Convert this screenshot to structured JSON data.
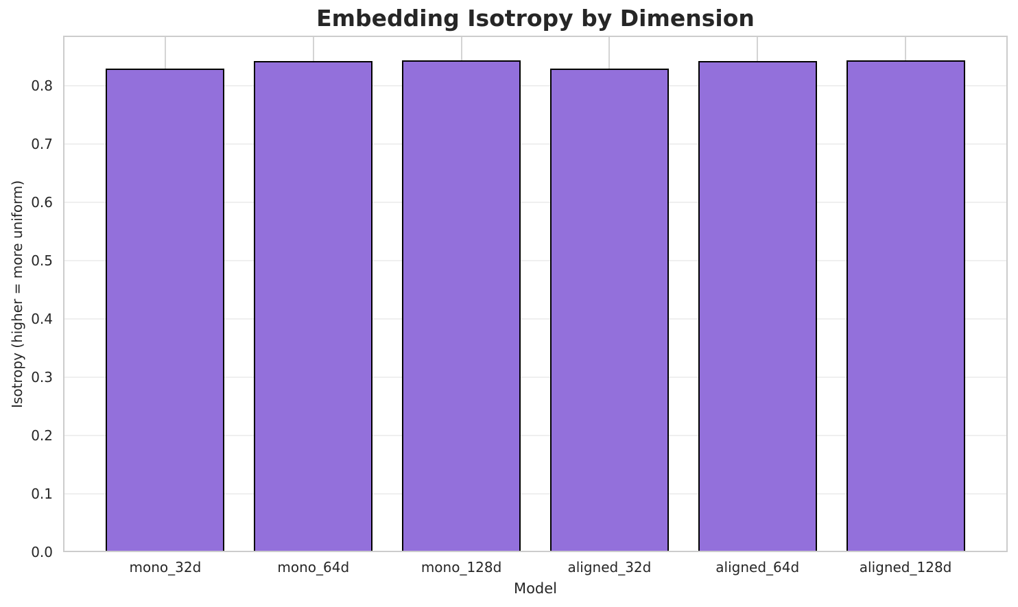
{
  "chart_data": {
    "type": "bar",
    "title": "Embedding Isotropy by Dimension",
    "xlabel": "Model",
    "ylabel": "Isotropy (higher = more uniform)",
    "categories": [
      "mono_32d",
      "mono_64d",
      "mono_128d",
      "aligned_32d",
      "aligned_64d",
      "aligned_128d"
    ],
    "values": [
      0.83,
      0.842,
      0.844,
      0.829,
      0.842,
      0.844
    ],
    "ylim": [
      0,
      0.886
    ],
    "yticks": [
      0.0,
      0.1,
      0.2,
      0.3,
      0.4,
      0.5,
      0.6,
      0.7,
      0.8
    ],
    "bar_width_fraction": 0.8,
    "grid": true,
    "legend": "none",
    "colors": {
      "bar_fill": "#9370DB",
      "bar_edge": "#000000",
      "grid_horizontal": "#efefef",
      "grid_vertical": "#d4d4d4",
      "spine": "#cccccc",
      "text": "#262626",
      "background": "#ffffff"
    }
  }
}
